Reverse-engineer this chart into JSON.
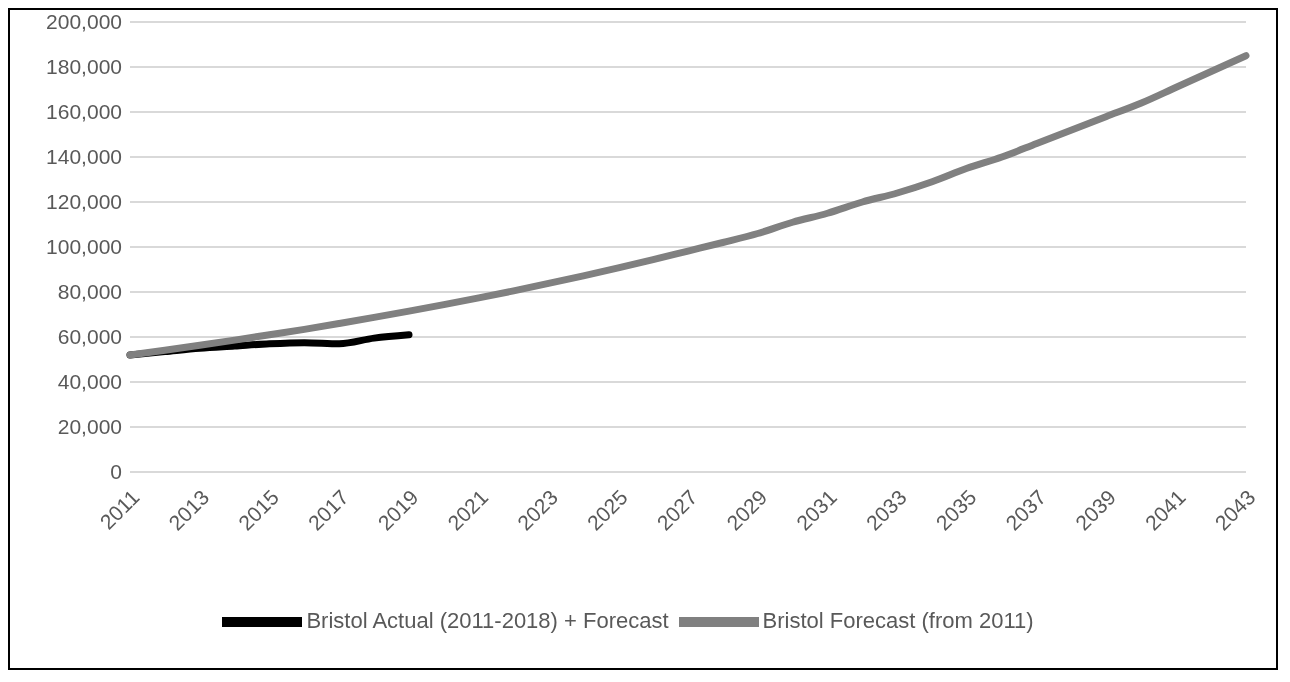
{
  "chart_data": {
    "type": "line",
    "categories": [
      "2011",
      null,
      "2013",
      null,
      "2015",
      null,
      "2017",
      null,
      "2019",
      null,
      "2021",
      null,
      "2023",
      null,
      "2025",
      null,
      "2027",
      null,
      "2029",
      null,
      "2031",
      null,
      "2033",
      null,
      "2035",
      null,
      "2037",
      null,
      "2039",
      null,
      "2041",
      null,
      "2043"
    ],
    "series": [
      {
        "name": "Bristol Actual (2011-2018) + Forecast",
        "color": "#000000",
        "values": [
          52000,
          53500,
          55000,
          56000,
          57000,
          57500,
          57000,
          59500,
          61000,
          null,
          null,
          null,
          null,
          null,
          null,
          null,
          null,
          null,
          null,
          null,
          null,
          null,
          null,
          null,
          null,
          null,
          null,
          null,
          null,
          null,
          null,
          null,
          null
        ]
      },
      {
        "name": "Bristol Forecast (from 2011)",
        "color": "#808080",
        "values": [
          52000,
          54100,
          56300,
          58600,
          61000,
          63400,
          66000,
          68700,
          71500,
          74400,
          77400,
          80500,
          83800,
          87200,
          90700,
          94400,
          98200,
          102000,
          106000,
          111000,
          115000,
          120000,
          124000,
          129000,
          135000,
          140000,
          146000,
          152000,
          158000,
          164000,
          171000,
          178000,
          185000
        ]
      }
    ],
    "ylim": [
      0,
      200000
    ],
    "yticks": [
      0,
      {
        "value": 20000,
        "label": "20,000"
      },
      {
        "value": 40000,
        "label": "40,000"
      },
      {
        "value": 60000,
        "label": "60,000"
      },
      {
        "value": 80000,
        "label": "80,000"
      },
      {
        "value": 100000,
        "label": "100,000"
      },
      {
        "value": 120000,
        "label": "120,000"
      },
      {
        "value": 140000,
        "label": "140,000"
      },
      {
        "value": 160000,
        "label": "160,000"
      },
      {
        "value": 180000,
        "label": "180,000"
      },
      {
        "value": 200000,
        "label": "200,000"
      }
    ],
    "grid": "y",
    "legend": "bottom",
    "marker": "none",
    "line_style": "solid"
  }
}
